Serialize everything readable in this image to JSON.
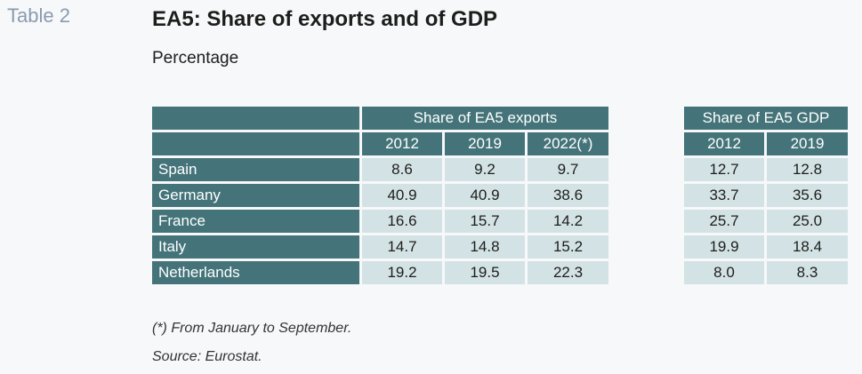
{
  "table_label": "Table 2",
  "title": "EA5: Share of exports and of GDP",
  "subtitle": "Percentage",
  "groups": {
    "exports": {
      "label": "Share of EA5 exports",
      "years": [
        "2012",
        "2019",
        "2022(*)"
      ]
    },
    "gdp": {
      "label": "Share of EA5 GDP",
      "years": [
        "2012",
        "2019"
      ]
    }
  },
  "rows": [
    {
      "country": "Spain",
      "exports": [
        "8.6",
        "9.2",
        "9.7"
      ],
      "gdp": [
        "12.7",
        "12.8"
      ]
    },
    {
      "country": "Germany",
      "exports": [
        "40.9",
        "40.9",
        "38.6"
      ],
      "gdp": [
        "33.7",
        "35.6"
      ]
    },
    {
      "country": "France",
      "exports": [
        "16.6",
        "15.7",
        "14.2"
      ],
      "gdp": [
        "25.7",
        "25.0"
      ]
    },
    {
      "country": "Italy",
      "exports": [
        "14.7",
        "14.8",
        "15.2"
      ],
      "gdp": [
        "19.9",
        "18.4"
      ]
    },
    {
      "country": "Netherlands",
      "exports": [
        "19.2",
        "19.5",
        "22.3"
      ],
      "gdp": [
        "8.0",
        "8.3"
      ]
    }
  ],
  "notes": {
    "footnote": "(*) From January to September.",
    "source": "Source: Eurostat."
  },
  "colors": {
    "header": "#44747a",
    "cell": "#d3e3e5",
    "table_label": "#8a9bb0"
  }
}
